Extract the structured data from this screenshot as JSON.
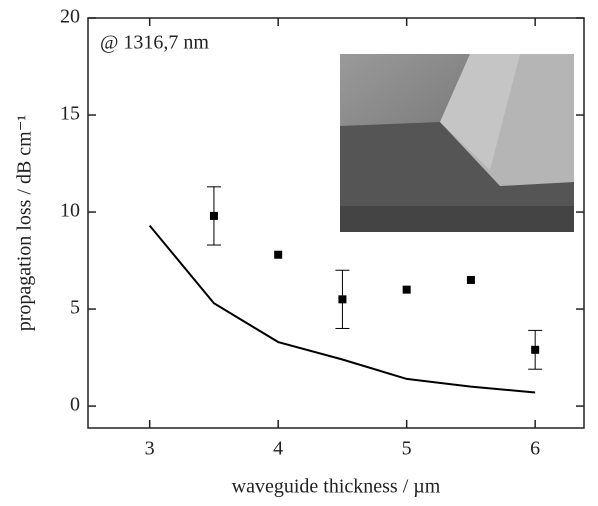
{
  "chart_data": {
    "type": "scatter",
    "xlabel": "waveguide thickness / µm",
    "ylabel": "propagation loss / dB cm⁻¹",
    "annotation": "@ 1316,7 nm",
    "xlim": [
      2.52,
      6.38
    ],
    "ylim": [
      -1.13,
      20
    ],
    "xticks": [
      3,
      4,
      5,
      6
    ],
    "yticks": [
      0,
      5,
      10,
      15,
      20
    ],
    "series": [
      {
        "type": "scatter",
        "color": "#000000",
        "x": [
          3.5,
          4,
          4.5,
          5,
          5.5,
          6
        ],
        "values": [
          9.8,
          7.8,
          5.5,
          6.0,
          6.5,
          2.9
        ],
        "errors": [
          1.5,
          null,
          1.5,
          null,
          null,
          1.0
        ]
      },
      {
        "type": "line",
        "color": "#000000",
        "x": [
          3,
          3.5,
          4,
          4.5,
          5,
          5.5,
          6
        ],
        "values": [
          9.3,
          5.3,
          3.3,
          2.4,
          1.4,
          1.0,
          0.7
        ]
      }
    ]
  }
}
